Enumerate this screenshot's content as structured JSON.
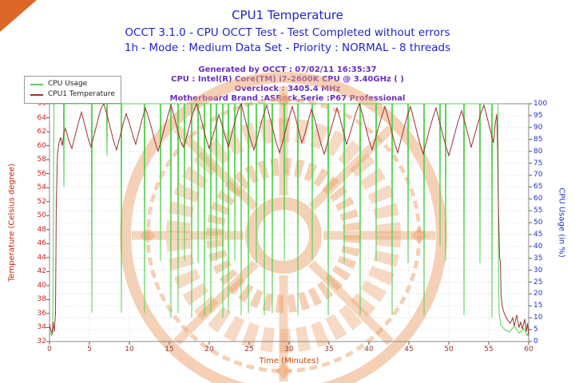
{
  "header": {
    "title": "CPU1 Temperature",
    "line2": "OCCT 3.1.0 - CPU OCCT Test - Test Completed without errors",
    "line3": "1h - Mode : Medium Data Set - Priority : NORMAL - 8 threads"
  },
  "info": {
    "generated": "Generated by OCCT : 07/02/11 16:35:37",
    "cpu": "CPU : Intel(R) Core(TM) i7-2600K CPU @ 3.40GHz (  )",
    "overclock": "Overclock : 3405.4 MHz",
    "motherboard": "Motherboard Brand :ASRock,Serie :P67 Professional"
  },
  "legend": [
    {
      "label": "CPU Usage",
      "color": "#55d34f"
    },
    {
      "label": "CPU1 Temperature",
      "color": "#9a3332"
    }
  ],
  "colors": {
    "title_text": "#2323c8",
    "info_text": "#6a2fc0",
    "cpu_line": "#55d34f",
    "temp_line": "#9a3332",
    "left_axis": "#cc2222",
    "right_axis": "#2233cc",
    "x_axis": "#993333",
    "grid": "#dddddd",
    "watermark": "#eca36e"
  },
  "chart_data": {
    "type": "line",
    "title": "CPU1 Temperature",
    "xlabel": "Time (Minutes)",
    "ylabel_left": "Temperature (Celsius degree)",
    "ylabel_right": "CPU Usage (in %)",
    "grid": true,
    "legend_position": "top-left",
    "axes": {
      "x": {
        "min": 0,
        "max": 60,
        "step": 5,
        "label": "Time (Minutes)"
      },
      "left": {
        "min": 32,
        "max": 66,
        "step": 2,
        "label": "Temperature (Celsius degree)"
      },
      "right": {
        "min": 0,
        "max": 100,
        "step": 5,
        "label": "CPU Usage (in %)"
      }
    },
    "series": [
      {
        "name": "CPU Usage",
        "axis": "right",
        "color": "#55d34f",
        "baseline": 100,
        "start": [
          [
            0,
            4
          ],
          [
            0.25,
            2.5
          ],
          [
            0.4,
            3.5
          ],
          [
            0.5,
            60
          ],
          [
            0.55,
            100
          ]
        ],
        "dips": [
          [
            1.8,
            65
          ],
          [
            5.3,
            12
          ],
          [
            7.2,
            78
          ],
          [
            9.0,
            12
          ],
          [
            11.9,
            12
          ],
          [
            13.9,
            34
          ],
          [
            15.2,
            10
          ],
          [
            16.1,
            12
          ],
          [
            16.9,
            34
          ],
          [
            17.8,
            10
          ],
          [
            18.6,
            33
          ],
          [
            19.4,
            11
          ],
          [
            20.2,
            12
          ],
          [
            20.9,
            34
          ],
          [
            21.7,
            10
          ],
          [
            22.4,
            12
          ],
          [
            23.2,
            34
          ],
          [
            24.0,
            11
          ],
          [
            24.9,
            12
          ],
          [
            25.9,
            33
          ],
          [
            26.9,
            11
          ],
          [
            27.9,
            12
          ],
          [
            29.4,
            34
          ],
          [
            31.1,
            11
          ],
          [
            32.9,
            34
          ],
          [
            34.9,
            11
          ],
          [
            36.9,
            33
          ],
          [
            38.9,
            11
          ],
          [
            40.9,
            34
          ],
          [
            42.9,
            11
          ],
          [
            44.9,
            33
          ],
          [
            46.9,
            11
          ],
          [
            48.9,
            40
          ],
          [
            49.6,
            34
          ],
          [
            51.9,
            11
          ],
          [
            53.9,
            33
          ],
          [
            55.4,
            10
          ]
        ],
        "end": [
          [
            56.15,
            100
          ],
          [
            56.22,
            30
          ],
          [
            56.3,
            12
          ],
          [
            56.5,
            7
          ],
          [
            57,
            5
          ],
          [
            57.6,
            4
          ],
          [
            58.2,
            6.5
          ],
          [
            58.8,
            3.5
          ],
          [
            59.4,
            5.5
          ],
          [
            59.8,
            2.5
          ],
          [
            60,
            4
          ]
        ]
      },
      {
        "name": "CPU1 Temperature",
        "axis": "left",
        "color": "#9a3332",
        "ramp": [
          [
            0,
            34.5
          ],
          [
            0.15,
            33.6
          ],
          [
            0.3,
            33.2
          ],
          [
            0.45,
            34.8
          ],
          [
            0.6,
            33.4
          ],
          [
            0.75,
            36
          ],
          [
            0.85,
            52
          ],
          [
            1.0,
            58.8
          ],
          [
            1.2,
            60.5
          ],
          [
            1.4,
            61.2
          ],
          [
            1.6,
            60.0
          ],
          [
            1.8,
            61.8
          ]
        ],
        "main": {
          "t_start": 2.0,
          "dt": 0.4,
          "values": [
            62.5,
            60.8,
            59.6,
            61.4,
            63.2,
            64.8,
            63.0,
            61.2,
            59.8,
            61.6,
            63.4,
            65.2,
            66.0,
            64.4,
            62.6,
            60.8,
            59.4,
            61.2,
            63.0,
            64.6,
            63.2,
            61.6,
            60.2,
            62.0,
            63.8,
            65.4,
            64.0,
            62.4,
            60.6,
            59.2,
            60.8,
            62.6,
            64.2,
            65.8,
            64.2,
            62.4,
            60.6,
            59.8,
            61.4,
            63.2,
            64.8,
            66.0,
            64.6,
            62.8,
            61.0,
            59.6,
            61.2,
            62.8,
            64.4,
            63.0,
            61.4,
            59.8,
            61.6,
            63.4,
            65.0,
            66.0,
            64.2,
            62.4,
            60.8,
            59.4,
            61.0,
            62.8,
            64.4,
            65.8,
            64.0,
            62.2,
            60.4,
            59.0,
            60.6,
            62.4,
            64.0,
            65.6,
            64.0,
            62.2,
            60.4,
            61.8,
            63.6,
            65.2,
            63.8,
            62.0,
            60.2,
            58.8,
            60.4,
            62.2,
            63.8,
            65.4,
            63.8,
            62.0,
            60.2,
            61.6,
            63.2,
            64.8,
            66.0,
            64.4,
            62.6,
            60.8,
            59.4,
            61.0,
            62.6,
            64.2,
            65.6,
            64.0,
            62.2,
            60.4,
            59.0,
            60.8,
            62.6,
            64.2,
            65.6,
            63.8,
            62.0,
            60.2,
            58.8,
            60.6,
            62.4,
            64.0,
            65.4,
            63.6,
            61.8,
            60.0,
            58.6,
            60.2,
            62.0,
            63.6,
            65.0,
            63.4,
            61.6,
            59.8,
            61.4,
            63.0,
            64.6,
            65.8,
            64.0,
            62.2,
            60.4
          ]
        },
        "tail": [
          [
            55.8,
            63.0
          ],
          [
            56.0,
            64.5
          ],
          [
            56.1,
            60.0
          ],
          [
            56.2,
            52.0
          ],
          [
            56.35,
            44.0
          ],
          [
            56.45,
            43.5
          ],
          [
            56.55,
            38.5
          ],
          [
            56.7,
            37.0
          ],
          [
            56.9,
            36.2
          ],
          [
            57.1,
            35.6
          ],
          [
            57.4,
            35.0
          ],
          [
            57.7,
            34.6
          ],
          [
            58.0,
            35.4
          ],
          [
            58.2,
            34.2
          ],
          [
            58.5,
            35.8
          ],
          [
            58.8,
            34.0
          ],
          [
            59.0,
            34.8
          ],
          [
            59.2,
            33.8
          ],
          [
            59.5,
            35.2
          ],
          [
            59.7,
            33.4
          ],
          [
            59.85,
            34.6
          ],
          [
            60,
            32.8
          ]
        ]
      }
    ]
  }
}
